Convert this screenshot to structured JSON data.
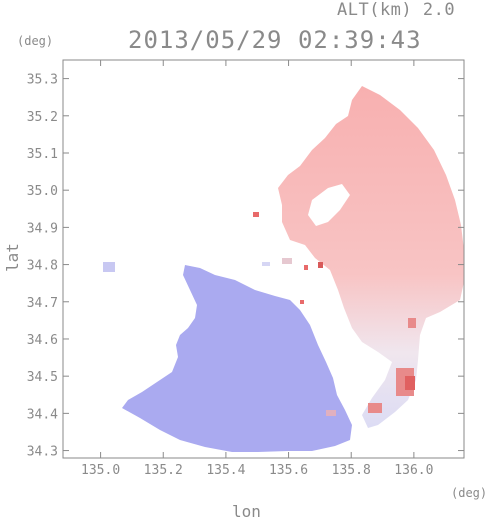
{
  "header": {
    "altitude": "ALT(km) 2.0",
    "timestamp": "2013/05/29 02:39:43"
  },
  "axes": {
    "y_unit": "(deg)",
    "x_unit": "(deg)",
    "xlabel": "lon",
    "ylabel": "lat",
    "xlim": [
      134.88,
      136.16
    ],
    "ylim": [
      34.28,
      35.35
    ],
    "xticks": [
      "135.0",
      "135.2",
      "135.4",
      "135.6",
      "135.8",
      "136.0"
    ],
    "yticks": [
      "35.3",
      "35.2",
      "35.1",
      "35.0",
      "34.9",
      "34.8",
      "34.7",
      "34.6",
      "34.5",
      "34.4",
      "34.3"
    ]
  },
  "colors": {
    "axis": "#8a8a8a",
    "toward_radar": "#aaaaf0",
    "away_from_radar": "#f8aaaa",
    "strong_away": "#e86a6a",
    "near_zero": "#eeeefa"
  }
}
